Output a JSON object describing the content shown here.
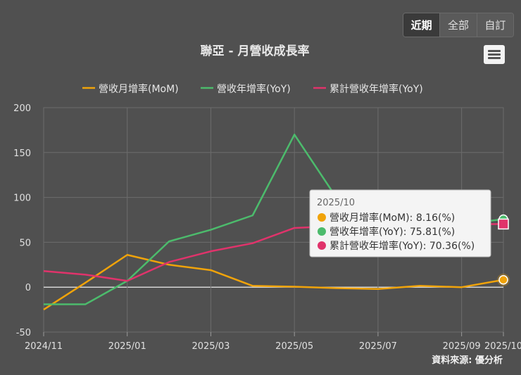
{
  "title": "聯亞 - 月營收成長率",
  "range_buttons": [
    {
      "label": "近期",
      "active": true
    },
    {
      "label": "全部",
      "active": false
    },
    {
      "label": "自訂",
      "active": false
    }
  ],
  "menu_icon": "hamburger-menu-icon",
  "credit": "資料來源: 優分析",
  "chart_data": {
    "type": "line",
    "x": [
      "2024/11",
      "2024/12",
      "2025/01",
      "2025/02",
      "2025/03",
      "2025/04",
      "2025/05",
      "2025/06",
      "2025/07",
      "2025/08",
      "2025/09",
      "2025/10"
    ],
    "x_tick_labels": [
      "2024/11",
      "2025/01",
      "2025/03",
      "2025/05",
      "2025/07",
      "2025/09",
      "2025/10"
    ],
    "y_ticks": [
      200,
      150,
      100,
      50,
      0,
      -50
    ],
    "ylim": [
      -50,
      200
    ],
    "grid": true,
    "legend_position": "top-center",
    "series": [
      {
        "name": "營收月增率(MoM)",
        "color": "#f0a30a",
        "values": [
          -25,
          5,
          36,
          25,
          19,
          1.5,
          0.5,
          -1,
          -2,
          1.5,
          0,
          8.16
        ]
      },
      {
        "name": "營收年增率(YoY)",
        "color": "#4cbb6c",
        "values": [
          -19,
          -19,
          7,
          51,
          64,
          80,
          170,
          100,
          75,
          72,
          70,
          75.81
        ]
      },
      {
        "name": "累計營收年增率(YoY)",
        "color": "#e0336b",
        "values": [
          18,
          14,
          7,
          28,
          40,
          49,
          66,
          68,
          69,
          69,
          70,
          70.36
        ]
      }
    ],
    "tooltip": {
      "header": "2025/10",
      "rows": [
        {
          "color": "#f0a30a",
          "text": "營收月增率(MoM): 8.16(%)"
        },
        {
          "color": "#4cbb6c",
          "text": "營收年增率(YoY): 75.81(%)"
        },
        {
          "color": "#e0336b",
          "text": "累計營收年增率(YoY): 70.36(%)"
        }
      ]
    }
  }
}
